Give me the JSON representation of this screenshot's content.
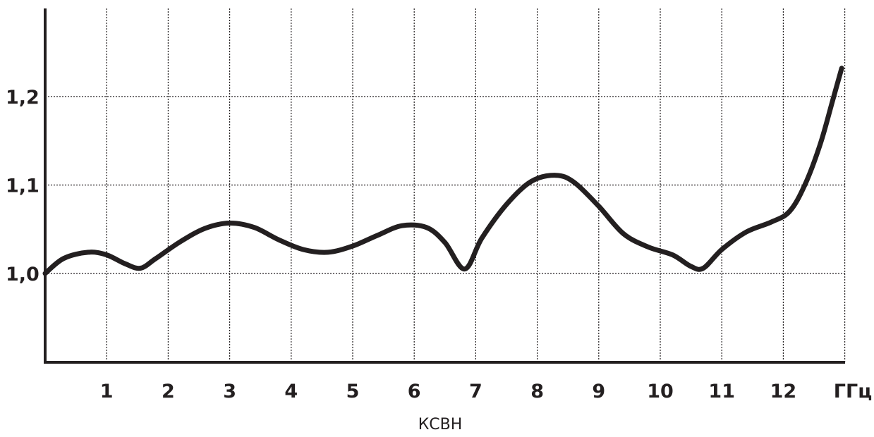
{
  "chart_data": {
    "type": "line",
    "title": "",
    "xlabel": "",
    "ylabel": "",
    "caption": "КСВН",
    "x_unit": "ГГц",
    "xlim": [
      0,
      13
    ],
    "ylim": [
      0.9,
      1.3
    ],
    "x_ticks": [
      1,
      2,
      3,
      4,
      5,
      6,
      7,
      8,
      9,
      10,
      11,
      12
    ],
    "x_tick_labels": [
      "1",
      "2",
      "3",
      "4",
      "5",
      "6",
      "7",
      "8",
      "9",
      "10",
      "11",
      "12"
    ],
    "y_ticks": [
      1.0,
      1.1,
      1.2
    ],
    "y_tick_labels": [
      "1,0",
      "1,1",
      "1,2"
    ],
    "grid": true,
    "legend": "none",
    "series": [
      {
        "x": [
          0.0,
          0.3,
          0.7,
          1.0,
          1.3,
          1.55,
          1.8,
          2.2,
          2.6,
          3.0,
          3.4,
          3.8,
          4.2,
          4.6,
          5.0,
          5.4,
          5.8,
          6.2,
          6.5,
          6.82,
          7.1,
          7.5,
          7.9,
          8.3,
          8.6,
          9.0,
          9.4,
          9.8,
          10.2,
          10.5,
          10.7,
          11.0,
          11.4,
          11.8,
          12.1,
          12.35,
          12.6,
          12.8,
          12.95
        ],
        "y": [
          1.0,
          1.017,
          1.024,
          1.021,
          1.011,
          1.006,
          1.017,
          1.036,
          1.051,
          1.057,
          1.052,
          1.038,
          1.027,
          1.024,
          1.031,
          1.043,
          1.054,
          1.052,
          1.035,
          1.005,
          1.04,
          1.078,
          1.104,
          1.111,
          1.103,
          1.076,
          1.045,
          1.03,
          1.021,
          1.008,
          1.006,
          1.027,
          1.047,
          1.058,
          1.07,
          1.1,
          1.146,
          1.195,
          1.232
        ]
      }
    ]
  }
}
